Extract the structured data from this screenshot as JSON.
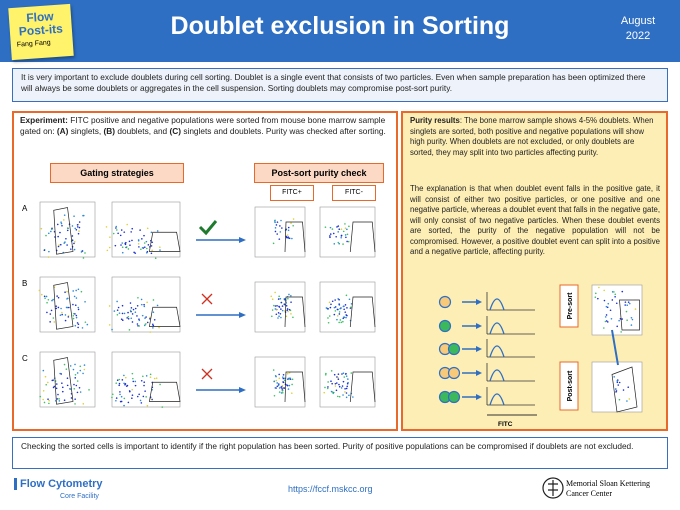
{
  "header": {
    "badge_title": "Flow Post-its",
    "badge_author": "Fang Fang",
    "title": "Doublet exclusion in Sorting",
    "date_month": "August",
    "date_year": "2022"
  },
  "intro": "It is very important to exclude doublets during cell sorting. Doublet is a single event that consists of two particles. Even when sample preparation has been optimized there will always be some doublets or aggregates in the cell suspension. Sorting doublets may compromise post-sort purity.",
  "experiment": {
    "segments": [
      {
        "text": "Experiment:",
        "bold": true
      },
      {
        "text": " FITC positive and negative populations were sorted from mouse bone marrow sample gated on: ",
        "bold": false
      },
      {
        "text": "(A)",
        "bold": true
      },
      {
        "text": " singlets, ",
        "bold": false
      },
      {
        "text": "(B)",
        "bold": true
      },
      {
        "text": " doublets, and ",
        "bold": false
      },
      {
        "text": "(C)",
        "bold": true
      },
      {
        "text": " singlets and doublets. Purity was checked after sorting.",
        "bold": false
      }
    ],
    "gating_header": "Gating strategies",
    "postsort_header": "Post-sort purity check",
    "fitc_pos": "FITC+",
    "fitc_neg": "FITC-",
    "rows": [
      "A",
      "B",
      "C"
    ]
  },
  "results": {
    "segments": [
      {
        "text": "Purity results",
        "bold": true
      },
      {
        "text": ": The bone marrow sample shows 4-5% doublets. When singlets are sorted, both positive and negative populations will show high purity. When doublets are not excluded, or only doublets are sorted, they may split into two particles affecting purity.",
        "bold": false
      }
    ],
    "explanation": "The explanation is that when doublet event falls in the positive gate, it will consist of either two positive particles, or one positive and one negative particle, whereas a doublet event that falls in the negative gate, will only consist of two negative particles. When these doublet events are sorted, the purity of the negative population will not be compromised. However, a positive doublet event can split into a positive and a negative particle, affecting purity.",
    "pre_sort": "Pre-sort",
    "post_sort": "Post-sort",
    "axis": "FITC"
  },
  "footer_note": "Checking the sorted cells is important to identify if the right population has been sorted. Purity of positive populations can be compromised if doublets are not excluded.",
  "footer": {
    "logo_title": "Flow Cytometry",
    "logo_sub": "Core Facility",
    "url": "https://fccf.mskcc.org",
    "org_1": "Memorial Sloan Kettering",
    "org_2": "Cancer Center"
  }
}
